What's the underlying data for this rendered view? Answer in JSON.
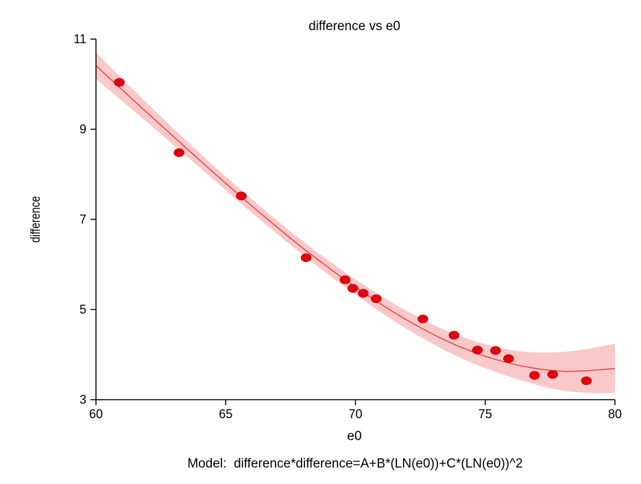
{
  "chart_data": {
    "type": "scatter",
    "title": "difference vs e0",
    "xlabel": "e0",
    "ylabel": "difference",
    "xlim": [
      60,
      80
    ],
    "ylim": [
      3,
      11
    ],
    "x_ticks": [
      60,
      65,
      70,
      75,
      80
    ],
    "y_ticks": [
      3,
      5,
      7,
      9,
      11
    ],
    "grid": false,
    "legend": "none",
    "model_caption": "Model:  difference*difference=A+B*(LN(e0))+C*(LN(e0))^2",
    "points": [
      {
        "x": 60.9,
        "y": 10.04
      },
      {
        "x": 63.2,
        "y": 8.48
      },
      {
        "x": 65.6,
        "y": 7.52
      },
      {
        "x": 68.1,
        "y": 6.15
      },
      {
        "x": 69.6,
        "y": 5.66
      },
      {
        "x": 69.9,
        "y": 5.47
      },
      {
        "x": 70.3,
        "y": 5.36
      },
      {
        "x": 70.8,
        "y": 5.24
      },
      {
        "x": 72.6,
        "y": 4.79
      },
      {
        "x": 73.8,
        "y": 4.43
      },
      {
        "x": 74.7,
        "y": 4.1
      },
      {
        "x": 75.4,
        "y": 4.09
      },
      {
        "x": 75.9,
        "y": 3.91
      },
      {
        "x": 76.9,
        "y": 3.54
      },
      {
        "x": 77.6,
        "y": 3.56
      },
      {
        "x": 78.9,
        "y": 3.42
      }
    ],
    "fit_curve": [
      {
        "x": 60,
        "y": 10.41
      },
      {
        "x": 62,
        "y": 9.35
      },
      {
        "x": 64,
        "y": 8.31
      },
      {
        "x": 66,
        "y": 7.3
      },
      {
        "x": 68,
        "y": 6.35
      },
      {
        "x": 70,
        "y": 5.5
      },
      {
        "x": 72,
        "y": 4.76
      },
      {
        "x": 74,
        "y": 4.18
      },
      {
        "x": 76,
        "y": 3.8
      },
      {
        "x": 78,
        "y": 3.63
      },
      {
        "x": 80,
        "y": 3.69
      }
    ],
    "confidence_band": [
      {
        "x": 60,
        "lo": 10.12,
        "hi": 10.7
      },
      {
        "x": 62,
        "lo": 9.14,
        "hi": 9.56
      },
      {
        "x": 64,
        "lo": 8.15,
        "hi": 8.47
      },
      {
        "x": 66,
        "lo": 7.15,
        "hi": 7.45
      },
      {
        "x": 68,
        "lo": 6.2,
        "hi": 6.5
      },
      {
        "x": 70,
        "lo": 5.33,
        "hi": 5.67
      },
      {
        "x": 72,
        "lo": 4.56,
        "hi": 4.96
      },
      {
        "x": 74,
        "lo": 3.94,
        "hi": 4.42
      },
      {
        "x": 76,
        "lo": 3.5,
        "hi": 4.1
      },
      {
        "x": 78,
        "lo": 3.2,
        "hi": 4.06
      },
      {
        "x": 80,
        "lo": 3.14,
        "hi": 4.24
      }
    ],
    "colors": {
      "points": "#e3000f",
      "curve": "#e8232a",
      "band": "#f9c8c8",
      "axis": "#000000"
    }
  }
}
